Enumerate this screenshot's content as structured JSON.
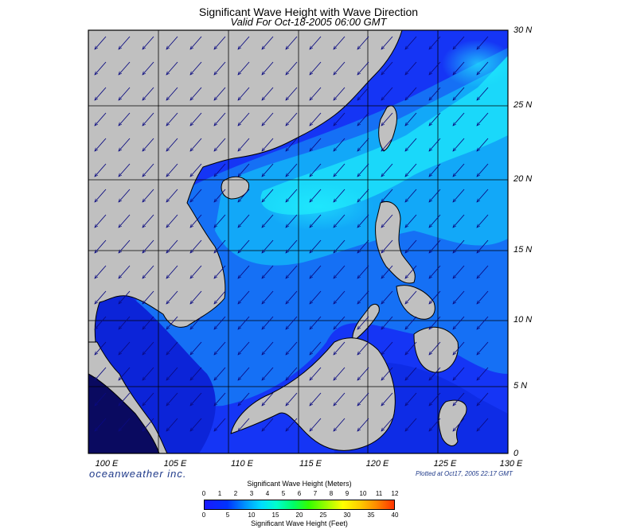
{
  "header": {
    "title": "Significant Wave Height with Wave Direction",
    "subtitle": "Valid For Oct-18-2005 06:00 GMT"
  },
  "map": {
    "lat_labels": [
      "30 N",
      "25 N",
      "20 N",
      "15 N",
      "10 N",
      "5 N",
      "0"
    ],
    "lon_labels": [
      "100 E",
      "105 E",
      "110 E",
      "115 E",
      "120 E",
      "125 E",
      "130 E"
    ],
    "land_color": "#c0c0c0",
    "deep_water_color": "#1020f0",
    "wave_direction": "southwest"
  },
  "footer": {
    "brand": "oceanweather inc.",
    "plotted": "Plotted at Oct17, 2005 22:17 GMT"
  },
  "colorbar": {
    "title_top": "Significant Wave Height (Meters)",
    "title_bottom": "Significant Wave Height (Feet)",
    "meters": [
      "0",
      "1",
      "2",
      "3",
      "4",
      "5",
      "6",
      "7",
      "8",
      "9",
      "10",
      "11",
      "12"
    ],
    "feet": [
      "0",
      "5",
      "10",
      "15",
      "20",
      "25",
      "30",
      "35",
      "40"
    ]
  }
}
